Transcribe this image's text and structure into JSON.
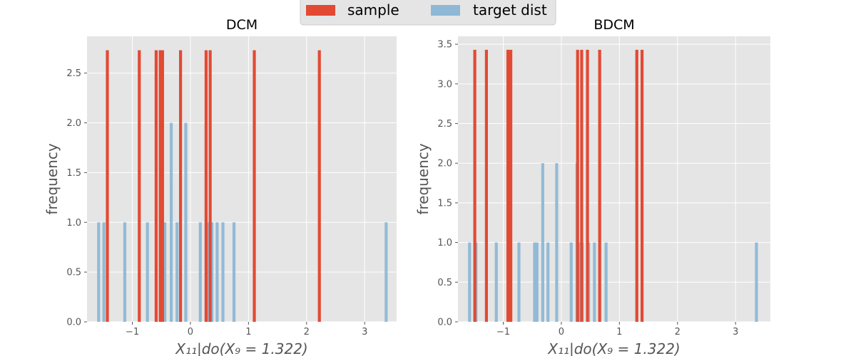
{
  "legend": {
    "entries": [
      {
        "label": "sample",
        "color": "#e24a33"
      },
      {
        "label": "target dist",
        "color": "#8eb8d6"
      }
    ],
    "placement": "top-center"
  },
  "colors": {
    "panel_background": "#e5e5e5",
    "grid": "#ffffff",
    "tick_text": "#555555",
    "sample": "#e24a33",
    "target": "#8eb8d6"
  },
  "chart_data": [
    {
      "type": "bar",
      "title": "DCM",
      "xlabel": "X₁₁|do(X₉ = 1.322)",
      "ylabel": "frequency",
      "xlim": [
        -1.78,
        3.55
      ],
      "ylim": [
        0,
        2.87
      ],
      "grid": true,
      "xticks": [
        {
          "v": -1,
          "label": "−1"
        },
        {
          "v": 0,
          "label": "0"
        },
        {
          "v": 1,
          "label": "1"
        },
        {
          "v": 2,
          "label": "2"
        },
        {
          "v": 3,
          "label": "3"
        }
      ],
      "yticks": [
        {
          "v": 0,
          "label": "0.0"
        },
        {
          "v": 0.5,
          "label": "0.5"
        },
        {
          "v": 1,
          "label": "1.0"
        },
        {
          "v": 1.5,
          "label": "1.5"
        },
        {
          "v": 2,
          "label": "2.0"
        },
        {
          "v": 2.5,
          "label": "2.5"
        }
      ],
      "series": [
        {
          "name": "target dist",
          "color": "#8eb8d6",
          "points": [
            {
              "x": -1.58,
              "y": 1
            },
            {
              "x": -1.49,
              "y": 1
            },
            {
              "x": -1.13,
              "y": 1
            },
            {
              "x": -0.74,
              "y": 1
            },
            {
              "x": -0.51,
              "y": 1
            },
            {
              "x": -0.44,
              "y": 1
            },
            {
              "x": -0.33,
              "y": 2
            },
            {
              "x": -0.23,
              "y": 1
            },
            {
              "x": -0.08,
              "y": 2
            },
            {
              "x": 0.17,
              "y": 1
            },
            {
              "x": 0.27,
              "y": 2
            },
            {
              "x": 0.31,
              "y": 1
            },
            {
              "x": 0.34,
              "y": 1
            },
            {
              "x": 0.37,
              "y": 1
            },
            {
              "x": 0.46,
              "y": 1
            },
            {
              "x": 0.56,
              "y": 1
            },
            {
              "x": 0.75,
              "y": 1
            },
            {
              "x": 3.37,
              "y": 1
            }
          ]
        },
        {
          "name": "sample",
          "color": "#e24a33",
          "points": [
            {
              "x": -1.43,
              "y": 2.73
            },
            {
              "x": -0.88,
              "y": 2.73
            },
            {
              "x": -0.59,
              "y": 2.73
            },
            {
              "x": -0.52,
              "y": 2.73
            },
            {
              "x": -0.48,
              "y": 2.73
            },
            {
              "x": -0.17,
              "y": 2.73
            },
            {
              "x": 0.27,
              "y": 2.73
            },
            {
              "x": 0.34,
              "y": 2.73
            },
            {
              "x": 1.1,
              "y": 2.73
            },
            {
              "x": 2.22,
              "y": 2.73
            }
          ]
        }
      ]
    },
    {
      "type": "bar",
      "title": "BDCM",
      "xlabel": "X₁₁|do(X₉ = 1.322)",
      "ylabel": "frequency",
      "xlim": [
        -1.78,
        3.6
      ],
      "ylim": [
        0,
        3.6
      ],
      "grid": true,
      "xticks": [
        {
          "v": -1,
          "label": "−1"
        },
        {
          "v": 0,
          "label": "0"
        },
        {
          "v": 1,
          "label": "1"
        },
        {
          "v": 2,
          "label": "2"
        },
        {
          "v": 3,
          "label": "3"
        }
      ],
      "yticks": [
        {
          "v": 0,
          "label": "0.0"
        },
        {
          "v": 0.5,
          "label": "0.5"
        },
        {
          "v": 1,
          "label": "1.0"
        },
        {
          "v": 1.5,
          "label": "1.5"
        },
        {
          "v": 2,
          "label": "2.0"
        },
        {
          "v": 2.5,
          "label": "2.5"
        },
        {
          "v": 3,
          "label": "3.0"
        },
        {
          "v": 3.5,
          "label": "3.5"
        }
      ],
      "series": [
        {
          "name": "target dist",
          "color": "#8eb8d6",
          "points": [
            {
              "x": -1.58,
              "y": 1
            },
            {
              "x": -1.47,
              "y": 1
            },
            {
              "x": -1.12,
              "y": 1
            },
            {
              "x": -0.73,
              "y": 1
            },
            {
              "x": -0.46,
              "y": 1
            },
            {
              "x": -0.42,
              "y": 1
            },
            {
              "x": -0.32,
              "y": 2
            },
            {
              "x": -0.23,
              "y": 1
            },
            {
              "x": -0.08,
              "y": 2
            },
            {
              "x": 0.17,
              "y": 1
            },
            {
              "x": 0.27,
              "y": 2
            },
            {
              "x": 0.3,
              "y": 1
            },
            {
              "x": 0.33,
              "y": 1
            },
            {
              "x": 0.36,
              "y": 1
            },
            {
              "x": 0.47,
              "y": 1
            },
            {
              "x": 0.57,
              "y": 1
            },
            {
              "x": 0.77,
              "y": 1
            },
            {
              "x": 3.36,
              "y": 1
            }
          ]
        },
        {
          "name": "sample",
          "color": "#e24a33",
          "points": [
            {
              "x": -1.49,
              "y": 3.43
            },
            {
              "x": -1.29,
              "y": 3.43
            },
            {
              "x": -0.92,
              "y": 3.43
            },
            {
              "x": -0.87,
              "y": 3.43
            },
            {
              "x": 0.28,
              "y": 3.43
            },
            {
              "x": 0.35,
              "y": 3.43
            },
            {
              "x": 0.45,
              "y": 3.43
            },
            {
              "x": 0.66,
              "y": 3.43
            },
            {
              "x": 1.3,
              "y": 3.43
            },
            {
              "x": 1.39,
              "y": 3.43
            }
          ]
        }
      ]
    }
  ]
}
